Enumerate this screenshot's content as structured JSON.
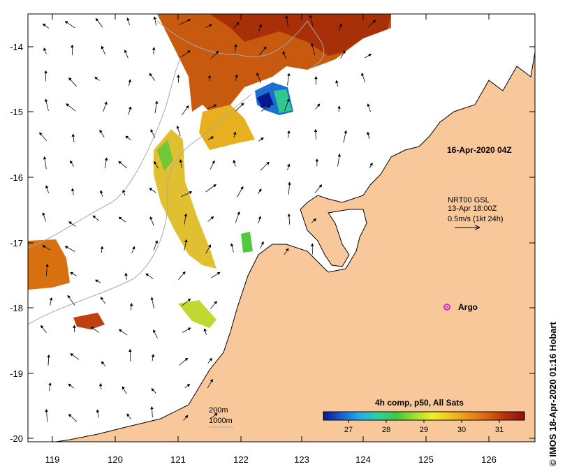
{
  "map": {
    "lon_ticks": [
      "119",
      "120",
      "121",
      "122",
      "123",
      "124",
      "125",
      "126"
    ],
    "lat_ticks": [
      "-14",
      "-15",
      "-16",
      "-17",
      "-18",
      "-19",
      "-20"
    ],
    "colors": {
      "land": "#f8c89a",
      "ocean": "#ffffff",
      "coast": "#000000",
      "bathy": "#a8a8a8",
      "argo": "#e020e0"
    },
    "date_label": "16-Apr-2020 04Z",
    "current_info": {
      "line1": "NRT00 GSL",
      "line2": "13-Apr 18:00Z",
      "line3": "0.5m/s (1kt 24h)"
    },
    "argo_label": "Argo",
    "depth_legend": {
      "line1": "200m",
      "line2": "1000m"
    },
    "colorbar": {
      "title": "4h comp, p50, All Sats",
      "ticks": [
        "27",
        "28",
        "29",
        "30",
        "31"
      ],
      "stops": [
        "#0a1690",
        "#1a5fd0",
        "#20b0e8",
        "#30d0a0",
        "#40c840",
        "#a0e030",
        "#f0f020",
        "#f0c020",
        "#e89018",
        "#d86010",
        "#b03010",
        "#900e08"
      ]
    },
    "credit": "© IMOS 18-Apr-2020 01:16 Hobart"
  }
}
